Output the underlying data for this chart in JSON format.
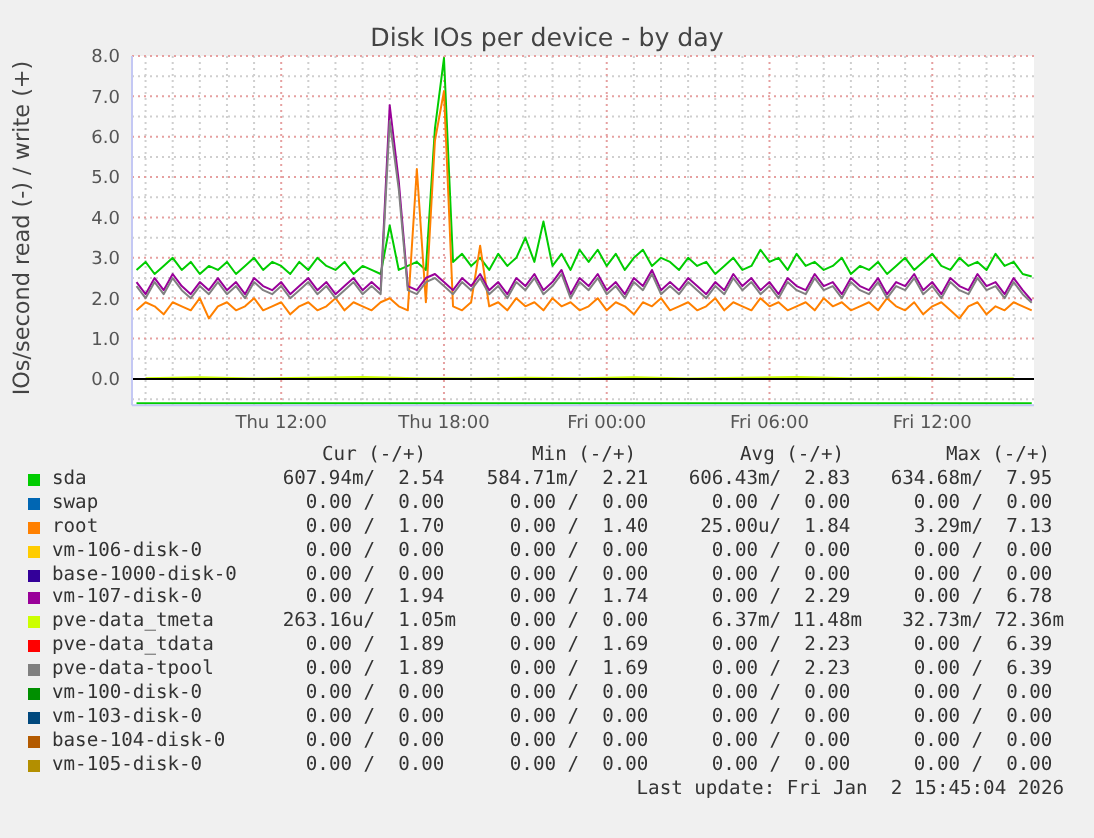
{
  "chart_data": {
    "type": "line",
    "title": "Disk IOs per device - by day",
    "ylabel": "IOs/second read (-) / write (+)",
    "x": [
      "2026-01-01T06:40",
      "2026-01-01T07:00",
      "2026-01-01T07:20",
      "2026-01-01T07:40",
      "2026-01-01T08:00",
      "2026-01-01T08:20",
      "2026-01-01T08:40",
      "2026-01-01T09:00",
      "2026-01-01T09:20",
      "2026-01-01T09:40",
      "2026-01-01T10:00",
      "2026-01-01T10:20",
      "2026-01-01T10:40",
      "2026-01-01T11:00",
      "2026-01-01T11:20",
      "2026-01-01T11:40",
      "2026-01-01T12:00",
      "2026-01-01T12:20",
      "2026-01-01T12:40",
      "2026-01-01T13:00",
      "2026-01-01T13:20",
      "2026-01-01T13:40",
      "2026-01-01T14:00",
      "2026-01-01T14:20",
      "2026-01-01T14:40",
      "2026-01-01T15:00",
      "2026-01-01T15:20",
      "2026-01-01T15:40",
      "2026-01-01T16:00",
      "2026-01-01T16:20",
      "2026-01-01T16:40",
      "2026-01-01T17:00",
      "2026-01-01T17:20",
      "2026-01-01T17:40",
      "2026-01-01T18:00",
      "2026-01-01T18:20",
      "2026-01-01T18:40",
      "2026-01-01T19:00",
      "2026-01-01T19:20",
      "2026-01-01T19:40",
      "2026-01-01T20:00",
      "2026-01-01T20:20",
      "2026-01-01T20:40",
      "2026-01-01T21:00",
      "2026-01-01T21:20",
      "2026-01-01T21:40",
      "2026-01-01T22:00",
      "2026-01-01T22:20",
      "2026-01-01T22:40",
      "2026-01-01T23:00",
      "2026-01-01T23:20",
      "2026-01-01T23:40",
      "2026-01-02T00:00",
      "2026-01-02T00:20",
      "2026-01-02T00:40",
      "2026-01-02T01:00",
      "2026-01-02T01:20",
      "2026-01-02T01:40",
      "2026-01-02T02:00",
      "2026-01-02T02:20",
      "2026-01-02T02:40",
      "2026-01-02T03:00",
      "2026-01-02T03:20",
      "2026-01-02T03:40",
      "2026-01-02T04:00",
      "2026-01-02T04:20",
      "2026-01-02T04:40",
      "2026-01-02T05:00",
      "2026-01-02T05:20",
      "2026-01-02T05:40",
      "2026-01-02T06:00",
      "2026-01-02T06:20",
      "2026-01-02T06:40",
      "2026-01-02T07:00",
      "2026-01-02T07:20",
      "2026-01-02T07:40",
      "2026-01-02T08:00",
      "2026-01-02T08:20",
      "2026-01-02T08:40",
      "2026-01-02T09:00",
      "2026-01-02T09:20",
      "2026-01-02T09:40",
      "2026-01-02T10:00",
      "2026-01-02T10:20",
      "2026-01-02T10:40",
      "2026-01-02T11:00",
      "2026-01-02T11:20",
      "2026-01-02T11:40",
      "2026-01-02T12:00",
      "2026-01-02T12:20",
      "2026-01-02T12:40",
      "2026-01-02T13:00",
      "2026-01-02T13:20",
      "2026-01-02T13:40",
      "2026-01-02T14:00",
      "2026-01-02T14:20",
      "2026-01-02T14:40",
      "2026-01-02T15:00",
      "2026-01-02T15:20",
      "2026-01-02T15:40"
    ],
    "xlim": [
      "2026-01-01T06:30",
      "2026-01-02T15:45"
    ],
    "xticks": [
      {
        "value": "2026-01-01T07:00",
        "label": null
      },
      {
        "value": "2026-01-01T08:00",
        "label": null
      },
      {
        "value": "2026-01-01T09:00",
        "label": null
      },
      {
        "value": "2026-01-01T10:00",
        "label": null
      },
      {
        "value": "2026-01-01T11:00",
        "label": null
      },
      {
        "value": "2026-01-01T12:00",
        "label": "Thu 12:00"
      },
      {
        "value": "2026-01-01T13:00",
        "label": null
      },
      {
        "value": "2026-01-01T14:00",
        "label": null
      },
      {
        "value": "2026-01-01T15:00",
        "label": null
      },
      {
        "value": "2026-01-01T16:00",
        "label": null
      },
      {
        "value": "2026-01-01T17:00",
        "label": null
      },
      {
        "value": "2026-01-01T18:00",
        "label": "Thu 18:00"
      },
      {
        "value": "2026-01-01T19:00",
        "label": null
      },
      {
        "value": "2026-01-01T20:00",
        "label": null
      },
      {
        "value": "2026-01-01T21:00",
        "label": null
      },
      {
        "value": "2026-01-01T22:00",
        "label": null
      },
      {
        "value": "2026-01-01T23:00",
        "label": null
      },
      {
        "value": "2026-01-02T00:00",
        "label": "Fri 00:00"
      },
      {
        "value": "2026-01-02T01:00",
        "label": null
      },
      {
        "value": "2026-01-02T02:00",
        "label": null
      },
      {
        "value": "2026-01-02T03:00",
        "label": null
      },
      {
        "value": "2026-01-02T04:00",
        "label": null
      },
      {
        "value": "2026-01-02T05:00",
        "label": null
      },
      {
        "value": "2026-01-02T06:00",
        "label": "Fri 06:00"
      },
      {
        "value": "2026-01-02T07:00",
        "label": null
      },
      {
        "value": "2026-01-02T08:00",
        "label": null
      },
      {
        "value": "2026-01-02T09:00",
        "label": null
      },
      {
        "value": "2026-01-02T10:00",
        "label": null
      },
      {
        "value": "2026-01-02T11:00",
        "label": null
      },
      {
        "value": "2026-01-02T12:00",
        "label": "Fri 12:00"
      },
      {
        "value": "2026-01-02T13:00",
        "label": null
      },
      {
        "value": "2026-01-02T14:00",
        "label": null
      },
      {
        "value": "2026-01-02T15:00",
        "label": null
      }
    ],
    "ylim": [
      -0.65,
      8
    ],
    "yticks": [
      {
        "value": -0.5,
        "label": null
      },
      {
        "value": 0,
        "label": "0.0"
      },
      {
        "value": 0.5,
        "label": null
      },
      {
        "value": 1,
        "label": "1.0"
      },
      {
        "value": 1.5,
        "label": null
      },
      {
        "value": 2,
        "label": "2.0"
      },
      {
        "value": 2.5,
        "label": null
      },
      {
        "value": 3,
        "label": "3.0"
      },
      {
        "value": 3.5,
        "label": null
      },
      {
        "value": 4,
        "label": "4.0"
      },
      {
        "value": 4.5,
        "label": null
      },
      {
        "value": 5,
        "label": "5.0"
      },
      {
        "value": 5.5,
        "label": null
      },
      {
        "value": 6,
        "label": "6.0"
      },
      {
        "value": 6.5,
        "label": null
      },
      {
        "value": 7,
        "label": "7.0"
      },
      {
        "value": 7.5,
        "label": null
      },
      {
        "value": 8,
        "label": "8.0"
      }
    ],
    "grid": true,
    "legend": "bottom",
    "ref_lines": [
      {
        "axis": "y",
        "value": 0,
        "color": "#000000"
      }
    ],
    "series": [
      {
        "name": "sda",
        "color": "#00cc00",
        "values": [
          2.7,
          2.9,
          2.6,
          2.8,
          3.0,
          2.7,
          2.9,
          2.6,
          2.8,
          2.7,
          2.9,
          2.6,
          2.8,
          3.0,
          2.7,
          2.9,
          2.8,
          2.6,
          2.9,
          2.7,
          3.0,
          2.8,
          2.7,
          2.9,
          2.6,
          2.8,
          2.7,
          2.6,
          3.8,
          2.7,
          2.8,
          2.9,
          2.7,
          6.2,
          7.95,
          2.9,
          3.1,
          2.8,
          3.0,
          2.7,
          3.1,
          2.8,
          3.0,
          3.5,
          2.9,
          3.9,
          2.8,
          3.1,
          2.7,
          3.2,
          2.9,
          3.2,
          2.8,
          3.1,
          2.7,
          3.0,
          3.2,
          2.8,
          3.0,
          2.9,
          2.7,
          3.0,
          2.8,
          2.9,
          2.6,
          2.8,
          3.0,
          2.7,
          2.8,
          3.2,
          2.9,
          3.0,
          2.7,
          3.1,
          2.8,
          2.9,
          2.7,
          2.8,
          3.0,
          2.6,
          2.8,
          2.7,
          2.9,
          2.6,
          2.8,
          3.0,
          2.7,
          2.9,
          3.1,
          2.8,
          2.7,
          3.0,
          2.8,
          2.9,
          2.7,
          3.1,
          2.8,
          2.9,
          2.6,
          2.54
        ]
      },
      {
        "color": "#00cc00",
        "x": [
          "2026-01-01T06:40",
          "2026-01-01T09:40",
          "2026-01-01T12:40",
          "2026-01-01T15:40",
          "2026-01-01T18:40",
          "2026-01-01T21:40",
          "2026-01-02T00:40",
          "2026-01-02T03:40",
          "2026-01-02T06:40",
          "2026-01-02T09:40",
          "2026-01-02T12:40",
          "2026-01-02T15:40"
        ],
        "values": [
          -0.6,
          -0.6,
          -0.6,
          -0.6,
          -0.6,
          -0.6,
          -0.6,
          -0.6,
          -0.6,
          -0.6,
          -0.6,
          -0.6
        ]
      },
      {
        "name": "swap",
        "color": "#0066b3",
        "values": [
          null,
          null,
          null,
          null,
          null,
          null,
          null,
          null,
          null,
          null,
          null,
          null,
          null,
          null,
          null,
          null,
          null,
          null,
          null,
          null,
          null,
          null,
          null,
          null,
          null,
          null,
          null,
          null,
          null,
          null,
          null,
          null,
          null,
          null,
          null,
          null,
          null,
          null,
          null,
          null,
          null,
          null,
          null,
          null,
          null,
          null,
          null,
          null,
          null,
          null,
          null,
          null,
          null,
          null,
          null,
          null,
          null,
          null,
          null,
          null,
          null,
          null,
          null,
          null,
          null,
          null,
          null,
          null,
          null,
          null,
          null,
          null,
          null,
          null,
          null,
          null,
          null,
          null,
          null,
          null,
          null,
          null,
          null,
          null,
          null,
          null,
          null,
          null,
          null,
          null,
          null,
          null,
          null,
          null,
          null,
          null,
          null,
          null,
          null,
          null
        ]
      },
      {
        "name": "root",
        "color": "#ff8000",
        "values": [
          1.7,
          1.9,
          1.8,
          1.6,
          1.9,
          1.8,
          1.7,
          2.0,
          1.5,
          1.8,
          1.9,
          1.7,
          1.8,
          2.0,
          1.7,
          1.8,
          1.9,
          1.6,
          1.8,
          1.9,
          1.7,
          1.8,
          2.0,
          1.7,
          1.9,
          1.8,
          1.7,
          1.9,
          2.0,
          1.8,
          1.7,
          5.2,
          1.9,
          5.9,
          7.13,
          1.8,
          1.7,
          1.9,
          3.3,
          1.8,
          1.9,
          1.7,
          2.0,
          1.8,
          1.9,
          1.7,
          2.0,
          1.8,
          1.9,
          1.7,
          1.8,
          2.0,
          1.7,
          1.9,
          1.8,
          1.6,
          1.9,
          1.8,
          2.0,
          1.7,
          1.8,
          1.9,
          1.7,
          1.8,
          2.0,
          1.7,
          1.9,
          1.8,
          1.7,
          2.0,
          1.8,
          1.9,
          1.7,
          1.8,
          1.9,
          1.7,
          2.0,
          1.8,
          1.9,
          1.7,
          1.8,
          1.9,
          1.7,
          2.0,
          1.8,
          1.7,
          1.9,
          1.6,
          1.8,
          1.9,
          1.7,
          1.5,
          1.8,
          1.9,
          1.6,
          1.8,
          1.7,
          1.9,
          1.8,
          1.7
        ]
      },
      {
        "name": "vm-106-disk-0",
        "color": "#ffcc00",
        "values": [
          null,
          null,
          null,
          null,
          null,
          null,
          null,
          null,
          null,
          null,
          null,
          null,
          null,
          null,
          null,
          null,
          null,
          null,
          null,
          null,
          null,
          null,
          null,
          null,
          null,
          null,
          null,
          null,
          null,
          null,
          null,
          null,
          null,
          null,
          null,
          null,
          null,
          null,
          null,
          null,
          null,
          null,
          null,
          null,
          null,
          null,
          null,
          null,
          null,
          null,
          null,
          null,
          null,
          null,
          null,
          null,
          null,
          null,
          null,
          null,
          null,
          null,
          null,
          null,
          null,
          null,
          null,
          null,
          null,
          null,
          null,
          null,
          null,
          null,
          null,
          null,
          null,
          null,
          null,
          null,
          null,
          null,
          null,
          null,
          null,
          null,
          null,
          null,
          null,
          null,
          null,
          null,
          null,
          null,
          null,
          null,
          null,
          null,
          null,
          null
        ]
      },
      {
        "name": "base-1000-disk-0",
        "color": "#330099",
        "values": [
          null,
          null,
          null,
          null,
          null,
          null,
          null,
          null,
          null,
          null,
          null,
          null,
          null,
          null,
          null,
          null,
          null,
          null,
          null,
          null,
          null,
          null,
          null,
          null,
          null,
          null,
          null,
          null,
          null,
          null,
          null,
          null,
          null,
          null,
          null,
          null,
          null,
          null,
          null,
          null,
          null,
          null,
          null,
          null,
          null,
          null,
          null,
          null,
          null,
          null,
          null,
          null,
          null,
          null,
          null,
          null,
          null,
          null,
          null,
          null,
          null,
          null,
          null,
          null,
          null,
          null,
          null,
          null,
          null,
          null,
          null,
          null,
          null,
          null,
          null,
          null,
          null,
          null,
          null,
          null,
          null,
          null,
          null,
          null,
          null,
          null,
          null,
          null,
          null,
          null,
          null,
          null,
          null,
          null,
          null,
          null,
          null,
          null,
          null,
          null
        ]
      },
      {
        "name": "vm-107-disk-0",
        "color": "#990099",
        "values": [
          2.4,
          2.1,
          2.5,
          2.2,
          2.6,
          2.3,
          2.1,
          2.4,
          2.2,
          2.5,
          2.2,
          2.4,
          2.1,
          2.5,
          2.3,
          2.2,
          2.4,
          2.1,
          2.3,
          2.5,
          2.2,
          2.4,
          2.1,
          2.3,
          2.5,
          2.2,
          2.4,
          2.2,
          6.78,
          4.9,
          2.3,
          2.2,
          2.5,
          2.6,
          2.4,
          2.2,
          2.5,
          2.3,
          2.6,
          2.2,
          2.4,
          2.1,
          2.5,
          2.3,
          2.6,
          2.2,
          2.4,
          2.7,
          2.1,
          2.5,
          2.3,
          2.6,
          2.2,
          2.4,
          2.1,
          2.5,
          2.3,
          2.7,
          2.2,
          2.4,
          2.2,
          2.5,
          2.3,
          2.1,
          2.4,
          2.2,
          2.6,
          2.3,
          2.5,
          2.2,
          2.4,
          2.1,
          2.5,
          2.3,
          2.2,
          2.6,
          2.3,
          2.4,
          2.1,
          2.5,
          2.3,
          2.2,
          2.5,
          2.1,
          2.4,
          2.3,
          2.6,
          2.2,
          2.4,
          2.1,
          2.5,
          2.3,
          2.2,
          2.6,
          2.3,
          2.4,
          2.1,
          2.5,
          2.2,
          1.94
        ]
      },
      {
        "name": "pve-data_tmeta",
        "color": "#ccff00",
        "x": [
          "2026-01-01T07:00",
          "2026-01-01T09:00",
          "2026-01-01T11:00",
          "2026-01-01T13:00",
          "2026-01-01T15:00",
          "2026-01-01T17:00",
          "2026-01-01T19:00",
          "2026-01-01T21:00",
          "2026-01-01T23:00",
          "2026-01-02T01:00",
          "2026-01-02T03:00",
          "2026-01-02T05:00",
          "2026-01-02T07:00",
          "2026-01-02T09:00",
          "2026-01-02T11:00",
          "2026-01-02T13:00",
          "2026-01-02T15:00"
        ],
        "values": [
          0.02,
          0.04,
          0.01,
          0.03,
          0.05,
          0.02,
          0.01,
          0.03,
          0.02,
          0.04,
          0.01,
          0.03,
          0.05,
          0.02,
          0.03,
          0.01,
          0.02
        ]
      },
      {
        "name": "pve-data_tdata",
        "color": "#ff0000",
        "values": [
          null,
          null,
          null,
          null,
          null,
          null,
          null,
          null,
          null,
          null,
          null,
          null,
          null,
          null,
          null,
          null,
          null,
          null,
          null,
          null,
          null,
          null,
          null,
          null,
          null,
          null,
          null,
          null,
          null,
          null,
          null,
          null,
          null,
          null,
          null,
          null,
          null,
          null,
          null,
          null,
          null,
          null,
          null,
          null,
          null,
          null,
          null,
          null,
          null,
          null,
          null,
          null,
          null,
          null,
          null,
          null,
          null,
          null,
          null,
          null,
          null,
          null,
          null,
          null,
          null,
          null,
          null,
          null,
          null,
          null,
          null,
          null,
          null,
          null,
          null,
          null,
          null,
          null,
          null,
          null,
          null,
          null,
          null,
          null,
          null,
          null,
          null,
          null,
          null,
          null,
          null,
          null,
          null,
          null,
          null,
          null,
          null,
          null,
          null,
          null
        ]
      },
      {
        "name": "pve-data-tpool",
        "color": "#808080",
        "values": [
          2.3,
          2.0,
          2.4,
          2.1,
          2.5,
          2.2,
          2.0,
          2.3,
          2.1,
          2.4,
          2.1,
          2.3,
          2.0,
          2.4,
          2.2,
          2.1,
          2.3,
          2.0,
          2.2,
          2.4,
          2.1,
          2.3,
          2.0,
          2.2,
          2.4,
          2.1,
          2.3,
          2.1,
          6.39,
          4.7,
          2.2,
          2.1,
          2.4,
          2.5,
          2.3,
          2.1,
          2.4,
          2.2,
          2.5,
          2.1,
          2.3,
          2.0,
          2.4,
          2.2,
          2.5,
          2.1,
          2.3,
          2.6,
          2.0,
          2.4,
          2.2,
          2.5,
          2.1,
          2.3,
          2.0,
          2.4,
          2.2,
          2.6,
          2.1,
          2.3,
          2.1,
          2.4,
          2.2,
          2.0,
          2.3,
          2.1,
          2.5,
          2.2,
          2.4,
          2.1,
          2.3,
          2.0,
          2.4,
          2.2,
          2.1,
          2.5,
          2.2,
          2.3,
          2.0,
          2.4,
          2.2,
          2.1,
          2.4,
          2.0,
          2.3,
          2.2,
          2.5,
          2.1,
          2.3,
          2.0,
          2.4,
          2.2,
          2.1,
          2.5,
          2.2,
          2.3,
          2.0,
          2.4,
          2.1,
          1.89
        ]
      },
      {
        "name": "vm-100-disk-0",
        "color": "#008f00",
        "values": [
          null,
          null,
          null,
          null,
          null,
          null,
          null,
          null,
          null,
          null,
          null,
          null,
          null,
          null,
          null,
          null,
          null,
          null,
          null,
          null,
          null,
          null,
          null,
          null,
          null,
          null,
          null,
          null,
          null,
          null,
          null,
          null,
          null,
          null,
          null,
          null,
          null,
          null,
          null,
          null,
          null,
          null,
          null,
          null,
          null,
          null,
          null,
          null,
          null,
          null,
          null,
          null,
          null,
          null,
          null,
          null,
          null,
          null,
          null,
          null,
          null,
          null,
          null,
          null,
          null,
          null,
          null,
          null,
          null,
          null,
          null,
          null,
          null,
          null,
          null,
          null,
          null,
          null,
          null,
          null,
          null,
          null,
          null,
          null,
          null,
          null,
          null,
          null,
          null,
          null,
          null,
          null,
          null,
          null,
          null,
          null,
          null,
          null,
          null,
          null
        ]
      },
      {
        "name": "vm-103-disk-0",
        "color": "#00487d",
        "values": [
          null,
          null,
          null,
          null,
          null,
          null,
          null,
          null,
          null,
          null,
          null,
          null,
          null,
          null,
          null,
          null,
          null,
          null,
          null,
          null,
          null,
          null,
          null,
          null,
          null,
          null,
          null,
          null,
          null,
          null,
          null,
          null,
          null,
          null,
          null,
          null,
          null,
          null,
          null,
          null,
          null,
          null,
          null,
          null,
          null,
          null,
          null,
          null,
          null,
          null,
          null,
          null,
          null,
          null,
          null,
          null,
          null,
          null,
          null,
          null,
          null,
          null,
          null,
          null,
          null,
          null,
          null,
          null,
          null,
          null,
          null,
          null,
          null,
          null,
          null,
          null,
          null,
          null,
          null,
          null,
          null,
          null,
          null,
          null,
          null,
          null,
          null,
          null,
          null,
          null,
          null,
          null,
          null,
          null,
          null,
          null,
          null,
          null,
          null,
          null
        ]
      },
      {
        "name": "base-104-disk-0",
        "color": "#b35a00",
        "values": [
          null,
          null,
          null,
          null,
          null,
          null,
          null,
          null,
          null,
          null,
          null,
          null,
          null,
          null,
          null,
          null,
          null,
          null,
          null,
          null,
          null,
          null,
          null,
          null,
          null,
          null,
          null,
          null,
          null,
          null,
          null,
          null,
          null,
          null,
          null,
          null,
          null,
          null,
          null,
          null,
          null,
          null,
          null,
          null,
          null,
          null,
          null,
          null,
          null,
          null,
          null,
          null,
          null,
          null,
          null,
          null,
          null,
          null,
          null,
          null,
          null,
          null,
          null,
          null,
          null,
          null,
          null,
          null,
          null,
          null,
          null,
          null,
          null,
          null,
          null,
          null,
          null,
          null,
          null,
          null,
          null,
          null,
          null,
          null,
          null,
          null,
          null,
          null,
          null,
          null,
          null,
          null,
          null,
          null,
          null,
          null,
          null,
          null,
          null,
          null
        ]
      },
      {
        "name": "vm-105-disk-0",
        "color": "#b38f00",
        "values": [
          null,
          null,
          null,
          null,
          null,
          null,
          null,
          null,
          null,
          null,
          null,
          null,
          null,
          null,
          null,
          null,
          null,
          null,
          null,
          null,
          null,
          null,
          null,
          null,
          null,
          null,
          null,
          null,
          null,
          null,
          null,
          null,
          null,
          null,
          null,
          null,
          null,
          null,
          null,
          null,
          null,
          null,
          null,
          null,
          null,
          null,
          null,
          null,
          null,
          null,
          null,
          null,
          null,
          null,
          null,
          null,
          null,
          null,
          null,
          null,
          null,
          null,
          null,
          null,
          null,
          null,
          null,
          null,
          null,
          null,
          null,
          null,
          null,
          null,
          null,
          null,
          null,
          null,
          null,
          null,
          null,
          null,
          null,
          null,
          null,
          null,
          null,
          null,
          null,
          null,
          null,
          null,
          null,
          null,
          null,
          null,
          null,
          null,
          null,
          null
        ]
      }
    ],
    "annotations": [
      "Cur (-/+)",
      "Min (-/+)",
      "Avg (-/+)",
      "Max (-/+)",
      "607.94m/  2.54",
      "584.71m/  2.21",
      "606.43m/  2.83",
      "634.68m/  7.95",
      "0.00 /  0.00",
      "0.00 /  0.00",
      "0.00 /  0.00",
      "0.00 /  0.00",
      "0.00 /  1.70",
      "0.00 /  1.40",
      "25.00u/  1.84",
      "3.29m/  7.13",
      "0.00 /  0.00",
      "0.00 /  0.00",
      "0.00 /  0.00",
      "0.00 /  0.00",
      "0.00 /  0.00",
      "0.00 /  0.00",
      "0.00 /  0.00",
      "0.00 /  0.00",
      "0.00 /  1.94",
      "0.00 /  1.74",
      "0.00 /  2.29",
      "0.00 /  6.78",
      "263.16u/  1.05m",
      "0.00 /  0.00",
      "6.37m/ 11.48m",
      "32.73m/ 72.36m",
      "0.00 /  1.89",
      "0.00 /  1.69",
      "0.00 /  2.23",
      "0.00 /  6.39",
      "0.00 /  1.89",
      "0.00 /  1.69",
      "0.00 /  2.23",
      "0.00 /  6.39",
      "0.00 /  0.00",
      "0.00 /  0.00",
      "0.00 /  0.00",
      "0.00 /  0.00",
      "0.00 /  0.00",
      "0.00 /  0.00",
      "0.00 /  0.00",
      "0.00 /  0.00",
      "0.00 /  0.00",
      "0.00 /  0.00",
      "0.00 /  0.00",
      "0.00 /  0.00",
      "0.00 /  0.00",
      "0.00 /  0.00",
      "0.00 /  0.00",
      "0.00 /  0.00",
      "Last update: Fri Jan  2 15:45:04 2026"
    ]
  }
}
